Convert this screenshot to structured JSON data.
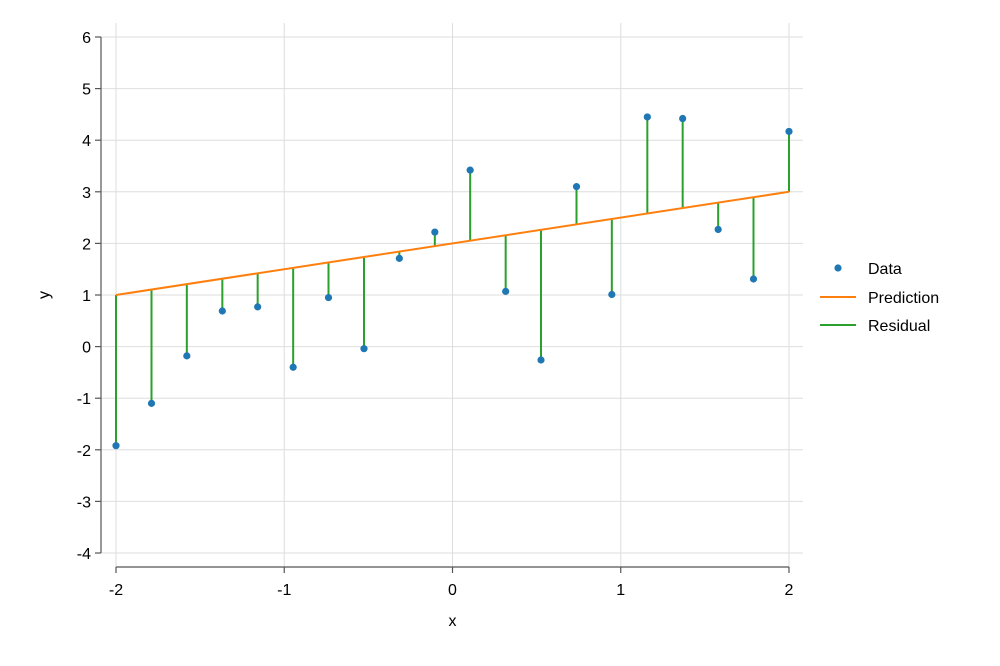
{
  "chart_data": {
    "type": "scatter",
    "title": "",
    "xlabel": "x",
    "ylabel": "y",
    "xlim": [
      -2,
      2
    ],
    "ylim": [
      -4,
      6
    ],
    "xticks": [
      -2,
      -1,
      0,
      1,
      2
    ],
    "yticks": [
      -4,
      -3,
      -2,
      -1,
      0,
      1,
      2,
      3,
      4,
      5,
      6
    ],
    "grid": true,
    "legend_position": "right",
    "colors": {
      "data": "#1f77b4",
      "prediction": "#ff7f0e",
      "residual": "#2ca02c"
    },
    "series": [
      {
        "name": "Data",
        "type": "scatter",
        "x": [
          -2.0,
          -1.789,
          -1.579,
          -1.368,
          -1.158,
          -0.947,
          -0.737,
          -0.526,
          -0.316,
          -0.105,
          0.105,
          0.316,
          0.526,
          0.737,
          0.947,
          1.158,
          1.368,
          1.579,
          1.789,
          2.0
        ],
        "y": [
          -1.92,
          -1.1,
          -0.18,
          0.69,
          0.77,
          -0.4,
          0.95,
          -0.04,
          1.71,
          2.22,
          3.42,
          1.07,
          -0.26,
          3.1,
          1.01,
          4.45,
          4.42,
          2.27,
          1.31,
          4.17
        ]
      },
      {
        "name": "Prediction",
        "type": "line",
        "x": [
          -2,
          2
        ],
        "y": [
          1,
          3
        ]
      },
      {
        "name": "Residual",
        "type": "segments"
      }
    ]
  }
}
